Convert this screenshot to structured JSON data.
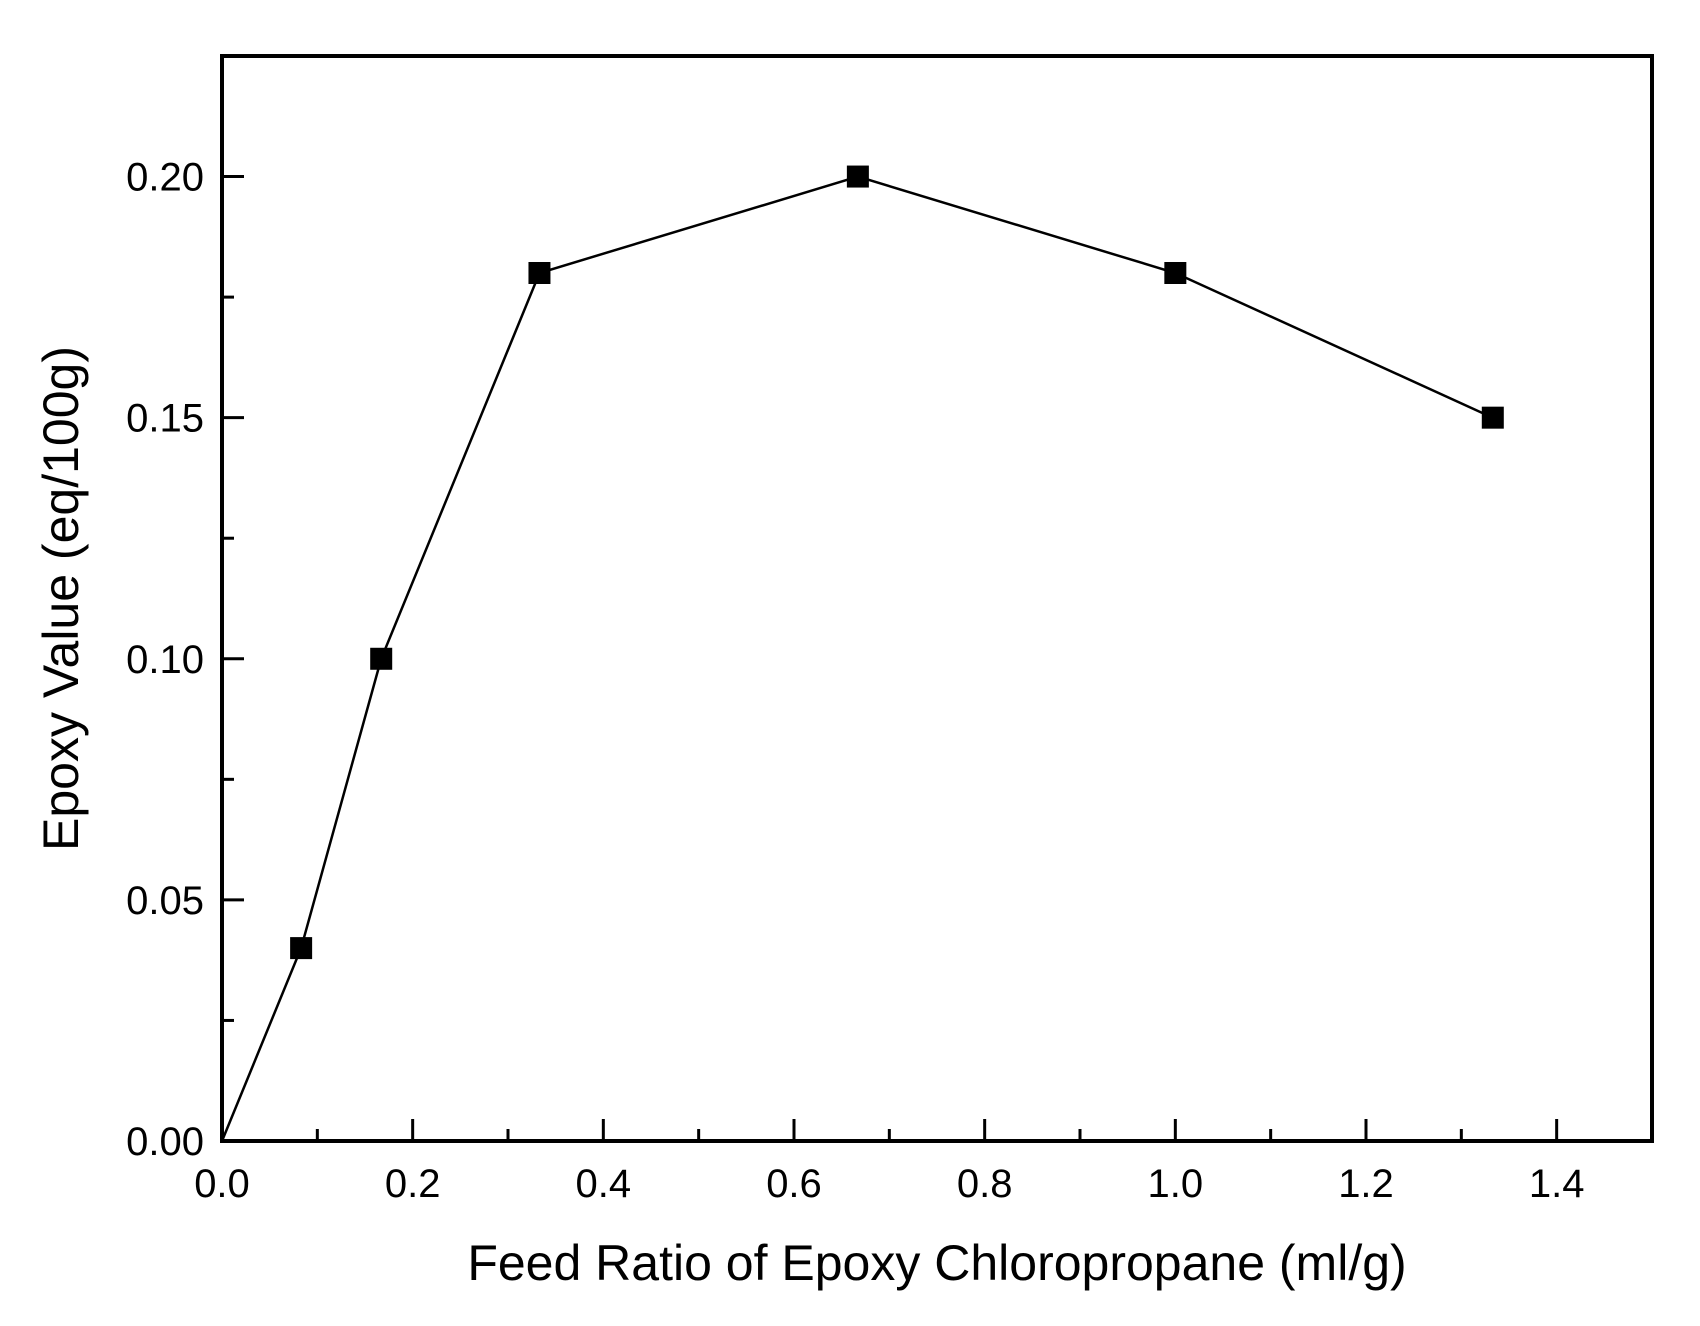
{
  "chart_data": {
    "type": "line",
    "title": "",
    "xlabel": "Feed Ratio of Epoxy Chloropropane (ml/g)",
    "ylabel": "Epoxy Value (eq/100g)",
    "xlim": [
      0.0,
      1.5
    ],
    "ylim": [
      0.0,
      0.225
    ],
    "x_ticks": [
      0.0,
      0.2,
      0.4,
      0.6,
      0.8,
      1.0,
      1.2,
      1.4
    ],
    "x_tick_labels": [
      "0.0",
      "0.2",
      "0.4",
      "0.6",
      "0.8",
      "1.0",
      "1.2",
      "1.4"
    ],
    "y_ticks": [
      0.0,
      0.05,
      0.1,
      0.15,
      0.2
    ],
    "y_tick_labels": [
      "0.00",
      "0.05",
      "0.10",
      "0.15",
      "0.20"
    ],
    "grid": false,
    "legend": "none",
    "series": [
      {
        "name": "Epoxy Value",
        "marker": "square",
        "color": "#000000",
        "x": [
          0.0,
          0.083,
          0.167,
          0.333,
          0.667,
          1.0,
          1.333
        ],
        "values": [
          0.0,
          0.04,
          0.1,
          0.18,
          0.2,
          0.18,
          0.15
        ],
        "markers_shown": [
          false,
          true,
          true,
          true,
          true,
          true,
          true
        ]
      }
    ]
  }
}
